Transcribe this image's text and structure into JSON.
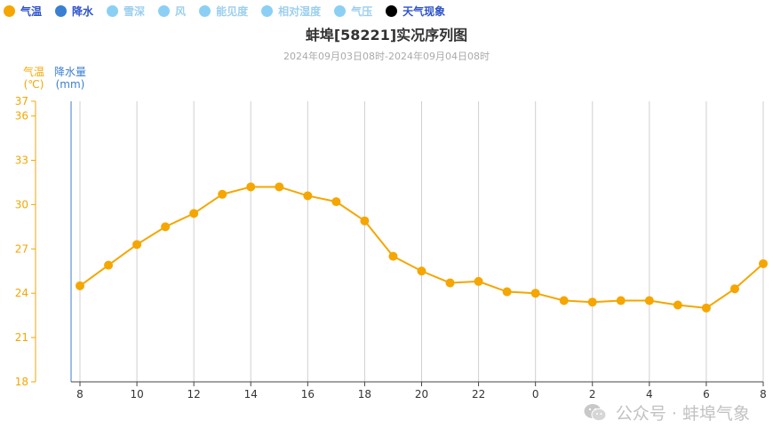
{
  "legend": [
    {
      "label": "气温",
      "color": "#f5a600",
      "active": true
    },
    {
      "label": "降水",
      "color": "#3a7fd1",
      "active": true
    },
    {
      "label": "雪深",
      "color": "#8ccff5",
      "active": false
    },
    {
      "label": "风",
      "color": "#8ccff5",
      "active": false
    },
    {
      "label": "能见度",
      "color": "#8ccff5",
      "active": false
    },
    {
      "label": "相对湿度",
      "color": "#8ccff5",
      "active": false
    },
    {
      "label": "气压",
      "color": "#8ccff5",
      "active": false
    },
    {
      "label": "天气现象",
      "color": "#000000",
      "active": true
    }
  ],
  "chart_data": {
    "type": "line",
    "title": "蚌埠[58221]实况序列图",
    "subtitle": "2024年09月03日08时-2024年09月04日08时",
    "ylabel_temp": "气温",
    "ylabel_temp_unit": "(℃)",
    "ylabel_rain": "降水量",
    "ylabel_rain_unit": "(mm)",
    "ylim": [
      18,
      37
    ],
    "y_ticks": [
      18,
      21,
      24,
      27,
      30,
      33,
      36,
      37
    ],
    "x_categories": [
      "8",
      "9",
      "10",
      "11",
      "12",
      "13",
      "14",
      "15",
      "16",
      "17",
      "18",
      "19",
      "20",
      "21",
      "22",
      "23",
      "0",
      "1",
      "2",
      "3",
      "4",
      "5",
      "6",
      "7",
      "8"
    ],
    "x_tick_labels": [
      "8",
      "10",
      "12",
      "14",
      "16",
      "18",
      "20",
      "22",
      "0",
      "2",
      "4",
      "6",
      "8"
    ],
    "grid": true,
    "series": [
      {
        "name": "气温",
        "color": "#f5a600",
        "values": [
          24.5,
          25.9,
          27.3,
          28.5,
          29.4,
          30.7,
          31.2,
          31.2,
          30.6,
          30.2,
          28.9,
          26.5,
          25.5,
          24.7,
          24.8,
          24.1,
          24.0,
          23.5,
          23.4,
          23.5,
          23.5,
          23.2,
          23.0,
          24.3,
          26.0
        ]
      }
    ]
  },
  "watermark": {
    "text": "公众号 · 蚌埠气象",
    "icon": "wechat-icon"
  }
}
